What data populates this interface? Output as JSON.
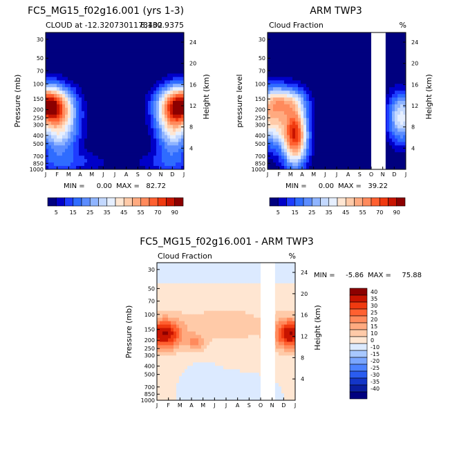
{
  "colors": {
    "frame": "#000000",
    "missing": "#ffffff"
  },
  "chart_data": [
    {
      "type": "heatmap",
      "title": "FC5_MG15_f02g16.001 (yrs 1-3)",
      "subtitle_left": "CLOUD at -12.3207301173402",
      "subtitle_right": "8,130.9375",
      "xlabel": "",
      "ylabel": "Pressure (mb)",
      "ylabel_right": "Height (km)",
      "x": [
        "J",
        "F",
        "M",
        "A",
        "M",
        "J",
        "J",
        "A",
        "S",
        "O",
        "N",
        "D",
        "J"
      ],
      "y_ticks": [
        30,
        50,
        70,
        100,
        150,
        200,
        250,
        300,
        400,
        500,
        700,
        850,
        1000
      ],
      "height_ticks": [
        4,
        8,
        12,
        16,
        20,
        24
      ],
      "min_label": "MIN =",
      "min_value": "0.00",
      "max_label": "MAX =",
      "max_value": "82.72",
      "peak_value": 82.72,
      "colorbar": {
        "labels": [
          "5",
          "15",
          "25",
          "35",
          "45",
          "55",
          "70",
          "90"
        ],
        "colors": [
          "#00007f",
          "#0000c8",
          "#1e3cff",
          "#2f6cff",
          "#5b8cff",
          "#8fb4ff",
          "#c3d8ff",
          "#e6efff",
          "#ffe6d2",
          "#ffcaa8",
          "#ffaa80",
          "#ff8a5c",
          "#ff6030",
          "#f03a10",
          "#c81400",
          "#8c0000"
        ]
      }
    },
    {
      "type": "heatmap",
      "title": "ARM TWP3",
      "subtitle_left": "Cloud Fraction",
      "subtitle_right": "%",
      "xlabel": "",
      "ylabel": "pressure level",
      "ylabel_right": "Height (km)",
      "x": [
        "J",
        "F",
        "M",
        "A",
        "M",
        "J",
        "J",
        "A",
        "S",
        "O",
        "N",
        "D",
        "J"
      ],
      "y_ticks": [
        30,
        50,
        70,
        100,
        150,
        200,
        250,
        300,
        400,
        500,
        700,
        850,
        1000
      ],
      "height_ticks": [
        4,
        8,
        12,
        16,
        20,
        24
      ],
      "missing_months": [
        "O"
      ],
      "min_label": "MIN =",
      "min_value": "0.00",
      "max_label": "MAX =",
      "max_value": "39.22",
      "peak_value": 39.22,
      "colorbar": {
        "labels": [
          "5",
          "15",
          "25",
          "35",
          "45",
          "55",
          "70",
          "90"
        ],
        "colors": [
          "#00007f",
          "#0000c8",
          "#1e3cff",
          "#2f6cff",
          "#5b8cff",
          "#8fb4ff",
          "#c3d8ff",
          "#e6efff",
          "#ffe6d2",
          "#ffcaa8",
          "#ffaa80",
          "#ff8a5c",
          "#ff6030",
          "#f03a10",
          "#c81400",
          "#8c0000"
        ]
      }
    },
    {
      "type": "heatmap",
      "title": "FC5_MG15_f02g16.001 - ARM TWP3",
      "subtitle_left": "Cloud Fraction",
      "subtitle_right": "%",
      "xlabel": "",
      "ylabel": "Pressure (mb)",
      "ylabel_right": "Height (km)",
      "x": [
        "J",
        "F",
        "M",
        "A",
        "M",
        "J",
        "J",
        "A",
        "S",
        "O",
        "N",
        "D",
        "J"
      ],
      "y_ticks": [
        30,
        50,
        70,
        100,
        150,
        200,
        250,
        300,
        400,
        500,
        700,
        850,
        1000
      ],
      "height_ticks": [
        4,
        8,
        12,
        16,
        20,
        24
      ],
      "missing_months": [
        "O"
      ],
      "min_label": "MIN =",
      "min_value": "-5.86",
      "max_label": "MAX =",
      "max_value": "75.88",
      "peak_value": 75.88,
      "colorbar": {
        "labels": [
          "40",
          "35",
          "30",
          "25",
          "20",
          "15",
          "10",
          "0",
          "-10",
          "-15",
          "-20",
          "-25",
          "-30",
          "-35",
          "-40"
        ],
        "colors": [
          "#8c0000",
          "#c81400",
          "#f03a10",
          "#ff6030",
          "#ff8a5c",
          "#ffaa80",
          "#ffcaa8",
          "#ffe6d2",
          "#dceaff",
          "#a8c8ff",
          "#7aa6ff",
          "#4c82ff",
          "#2a5cf0",
          "#1436c8",
          "#0a1ea0",
          "#00007f"
        ]
      }
    }
  ]
}
